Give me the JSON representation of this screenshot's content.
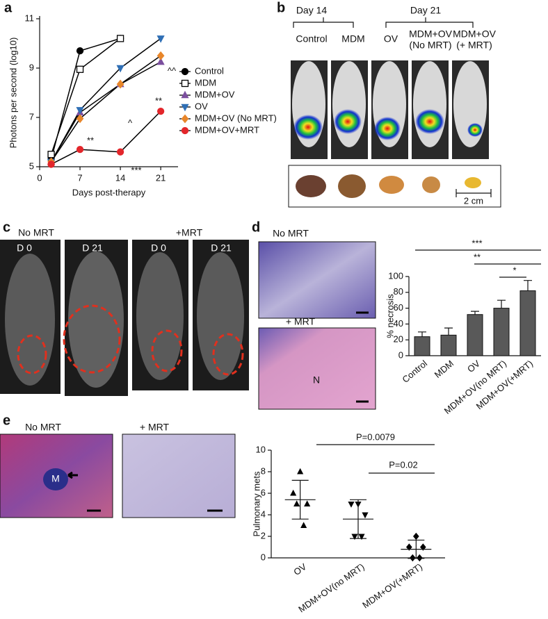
{
  "figure": {
    "panel_labels": [
      "a",
      "b",
      "c",
      "d",
      "e"
    ],
    "b": {
      "day14": "Day 14",
      "day21": "Day 21",
      "groups": [
        [
          "Control"
        ],
        [
          "MDM"
        ],
        [
          "OV"
        ],
        [
          "MDM+OV",
          "(No MRT)"
        ],
        [
          "MDM+OV",
          "(+ MRT)"
        ]
      ],
      "scale": "2 cm"
    },
    "c": {
      "left": "No MRT",
      "right": "+MRT",
      "days": [
        "D 0",
        "D 21",
        "D 0",
        "D 21"
      ]
    },
    "d": {
      "top": "No MRT",
      "bottom": "+ MRT",
      "marker": "N"
    },
    "e": {
      "left": "No MRT",
      "right": "+ MRT",
      "marker": "M"
    }
  },
  "chart_data": [
    {
      "type": "line",
      "x_label": "Days post-therapy",
      "y_label": "Photons per second (log10)",
      "x": [
        2,
        7,
        14,
        21
      ],
      "xlim": [
        0,
        24
      ],
      "xticks": [
        0,
        7,
        14,
        21
      ],
      "ylim": [
        5,
        11
      ],
      "yticks": [
        5,
        7,
        9,
        11
      ],
      "line_color": "#000000",
      "series": [
        {
          "name": "Control",
          "color": "#000000",
          "marker": "circle",
          "values": [
            5.3,
            9.7,
            10.2,
            null
          ]
        },
        {
          "name": "MDM",
          "color": "#000000",
          "marker": "square-open",
          "values": [
            5.5,
            8.95,
            10.2,
            null
          ]
        },
        {
          "name": "MDM+OV",
          "color": "#7b4f9e",
          "marker": "triangle-up",
          "values": [
            5.2,
            7.2,
            8.35,
            9.25
          ]
        },
        {
          "name": "OV",
          "color": "#2f6fb5",
          "marker": "triangle-down",
          "values": [
            5.2,
            7.3,
            9.0,
            10.2
          ]
        },
        {
          "name": "MDM+OV (No MRT)",
          "color": "#e8862a",
          "marker": "diamond",
          "values": [
            5.2,
            6.95,
            8.35,
            9.5
          ]
        },
        {
          "name": "MDM+OV+MRT",
          "color": "#e3262b",
          "marker": "circle",
          "values": [
            5.1,
            5.7,
            5.6,
            7.25
          ]
        }
      ],
      "annotations": [
        "**",
        "***",
        "**",
        "^",
        "^^"
      ]
    },
    {
      "type": "bar",
      "y_label": "% necrosis",
      "categories": [
        "Control",
        "MDM",
        "OV",
        "MDM+OV(no MRT)",
        "MDM+OV(+MRT)"
      ],
      "values": [
        24,
        26,
        52,
        60,
        82
      ],
      "errors": [
        6,
        9,
        4,
        10,
        13
      ],
      "color": "#595959",
      "ylim": [
        0,
        100
      ],
      "yticks": [
        0,
        20,
        40,
        60,
        80,
        100
      ],
      "annotations": [
        "***",
        "**",
        "*"
      ]
    },
    {
      "type": "dot",
      "y_label": "Pulmonary mets",
      "categories": [
        "OV",
        "MDM+OV(no MRT)",
        "MDM+OV(+MRT)"
      ],
      "values": [
        [
          8,
          6,
          5,
          5,
          3
        ],
        [
          5,
          5,
          4,
          2,
          2
        ],
        [
          2,
          1,
          1,
          0,
          0
        ]
      ],
      "means": [
        5.4,
        3.6,
        0.8
      ],
      "sds": [
        1.8,
        1.8,
        0.85
      ],
      "markers": [
        "triangle-up",
        "triangle-down",
        "diamond"
      ],
      "color": "#000000",
      "ylim": [
        0,
        10
      ],
      "yticks": [
        0,
        2,
        4,
        6,
        8,
        10
      ],
      "annotations": [
        "P=0.0079",
        "P=0.02"
      ]
    }
  ]
}
